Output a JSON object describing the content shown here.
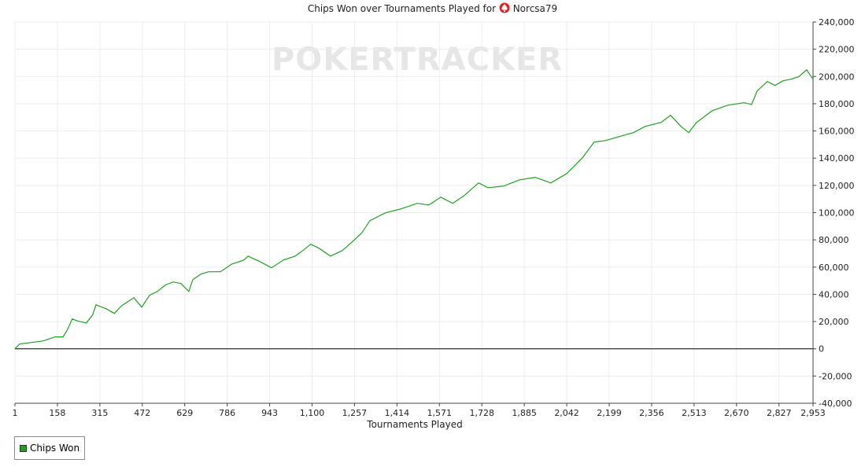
{
  "chart_data": {
    "type": "line",
    "title": "Chips Won over Tournaments Played for",
    "player": "Norcsa79",
    "watermark": "POKERTRACKER",
    "x_label": "Tournaments Played",
    "x": [
      1,
      18,
      62,
      106,
      149,
      179,
      193,
      213,
      236,
      265,
      288,
      301,
      339,
      368,
      397,
      441,
      470,
      499,
      528,
      557,
      586,
      615,
      644,
      659,
      688,
      717,
      761,
      804,
      848,
      863,
      906,
      950,
      994,
      1037,
      1066,
      1095,
      1125,
      1168,
      1212,
      1255,
      1285,
      1314,
      1372,
      1430,
      1489,
      1532,
      1576,
      1620,
      1663,
      1716,
      1750,
      1809,
      1867,
      1925,
      1983,
      2042,
      2100,
      2143,
      2187,
      2245,
      2289,
      2333,
      2391,
      2426,
      2464,
      2493,
      2522,
      2580,
      2638,
      2697,
      2726,
      2746,
      2784,
      2813,
      2842,
      2871,
      2900,
      2929,
      2953
    ],
    "series": [
      {
        "name": "Chips Won",
        "color": "#1ea01e",
        "values": [
          0,
          3500,
          4600,
          5800,
          8700,
          8700,
          13300,
          21900,
          20200,
          19000,
          24800,
          32300,
          29400,
          26000,
          31800,
          37500,
          30600,
          39300,
          42100,
          46800,
          49100,
          47900,
          42100,
          50800,
          54800,
          56600,
          56600,
          62300,
          65200,
          68100,
          64100,
          59500,
          65200,
          68100,
          72200,
          76800,
          73900,
          68100,
          72200,
          79700,
          85400,
          94100,
          99900,
          102800,
          106800,
          105600,
          111400,
          106800,
          112600,
          121800,
          118300,
          119500,
          124100,
          125900,
          121800,
          128700,
          140300,
          151800,
          153000,
          156400,
          158800,
          163400,
          166300,
          171500,
          163400,
          158800,
          166300,
          174900,
          178900,
          180700,
          179500,
          189300,
          196300,
          193400,
          196900,
          198000,
          199800,
          204900,
          198000
        ]
      }
    ],
    "xlim": [
      1,
      2953
    ],
    "xticks": [
      1,
      158,
      315,
      472,
      629,
      786,
      943,
      {
        "value": 1100,
        "label": "1,100"
      },
      {
        "value": 1257,
        "label": "1,257"
      },
      {
        "value": 1414,
        "label": "1,414"
      },
      {
        "value": 1571,
        "label": "1,571"
      },
      {
        "value": 1728,
        "label": "1,728"
      },
      {
        "value": 1885,
        "label": "1,885"
      },
      {
        "value": 2042,
        "label": "2,042"
      },
      {
        "value": 2199,
        "label": "2,199"
      },
      {
        "value": 2356,
        "label": "2,356"
      },
      {
        "value": 2513,
        "label": "2,513"
      },
      {
        "value": 2670,
        "label": "2,670"
      },
      {
        "value": 2827,
        "label": "2,827"
      },
      {
        "value": 2953,
        "label": "2,953"
      }
    ],
    "ylim": [
      -40000,
      240000
    ],
    "yticks": [
      {
        "value": -40000,
        "label": "-40,000"
      },
      {
        "value": -20000,
        "label": "-20,000"
      },
      0,
      {
        "value": 20000,
        "label": "20,000"
      },
      {
        "value": 40000,
        "label": "40,000"
      },
      {
        "value": 60000,
        "label": "60,000"
      },
      {
        "value": 80000,
        "label": "80,000"
      },
      {
        "value": 100000,
        "label": "100,000"
      },
      {
        "value": 120000,
        "label": "120,000"
      },
      {
        "value": 140000,
        "label": "140,000"
      },
      {
        "value": 160000,
        "label": "160,000"
      },
      {
        "value": 180000,
        "label": "180,000"
      },
      {
        "value": 200000,
        "label": "200,000"
      },
      {
        "value": 220000,
        "label": "220,000"
      },
      {
        "value": 240000,
        "label": "240,000"
      }
    ],
    "grid": true
  }
}
